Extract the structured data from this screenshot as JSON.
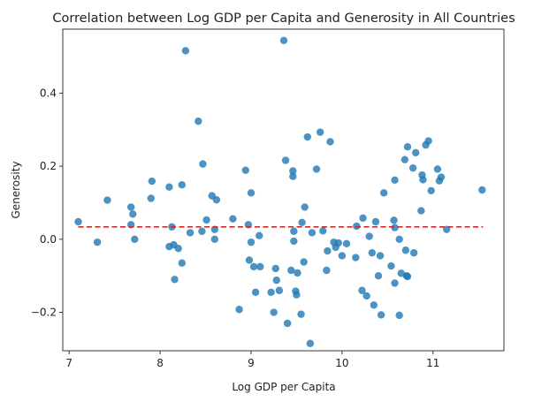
{
  "chart_data": {
    "type": "scatter",
    "title": "Correlation between Log GDP per Capita and Generosity in All Countries",
    "xlabel": "Log GDP per Capita",
    "ylabel": "Generosity",
    "xlim": [
      6.93,
      11.78
    ],
    "ylim": [
      -0.305,
      0.575
    ],
    "xticks": [
      7,
      8,
      9,
      10,
      11
    ],
    "yticks": [
      -0.2,
      0.0,
      0.2,
      0.4
    ],
    "ytick_labels": [
      "−0.2",
      "0.0",
      "0.2",
      "0.4"
    ],
    "grid": false,
    "colors": {
      "points": "#1f77b4",
      "trend": "#d62728"
    },
    "trend_line": {
      "style": "dashed",
      "x": [
        7.1,
        11.55
      ],
      "y": [
        0.034,
        0.034
      ]
    },
    "points": [
      [
        7.1,
        0.048
      ],
      [
        7.31,
        -0.008
      ],
      [
        7.42,
        0.107
      ],
      [
        7.68,
        0.088
      ],
      [
        7.7,
        0.069
      ],
      [
        7.68,
        0.04
      ],
      [
        7.72,
        0.0
      ],
      [
        7.9,
        0.112
      ],
      [
        7.91,
        0.159
      ],
      [
        8.1,
        0.143
      ],
      [
        8.1,
        -0.02
      ],
      [
        8.13,
        0.034
      ],
      [
        8.15,
        -0.015
      ],
      [
        8.16,
        -0.11
      ],
      [
        8.2,
        -0.025
      ],
      [
        8.24,
        0.149
      ],
      [
        8.24,
        -0.065
      ],
      [
        8.28,
        0.516
      ],
      [
        8.33,
        0.018
      ],
      [
        8.42,
        0.323
      ],
      [
        8.46,
        0.022
      ],
      [
        8.47,
        0.206
      ],
      [
        8.51,
        0.053
      ],
      [
        8.57,
        0.119
      ],
      [
        8.6,
        0.027
      ],
      [
        8.6,
        0.0
      ],
      [
        8.62,
        0.108
      ],
      [
        8.8,
        0.056
      ],
      [
        8.87,
        -0.192
      ],
      [
        8.94,
        0.189
      ],
      [
        8.97,
        0.04
      ],
      [
        8.98,
        -0.057
      ],
      [
        9.0,
        0.127
      ],
      [
        9.0,
        -0.008
      ],
      [
        9.03,
        -0.075
      ],
      [
        9.05,
        -0.145
      ],
      [
        9.09,
        0.01
      ],
      [
        9.1,
        -0.075
      ],
      [
        9.22,
        -0.145
      ],
      [
        9.25,
        -0.2
      ],
      [
        9.27,
        -0.08
      ],
      [
        9.28,
        -0.112
      ],
      [
        9.31,
        -0.14
      ],
      [
        9.36,
        0.544
      ],
      [
        9.38,
        0.216
      ],
      [
        9.4,
        -0.23
      ],
      [
        9.44,
        -0.085
      ],
      [
        9.46,
        0.187
      ],
      [
        9.46,
        0.172
      ],
      [
        9.47,
        -0.005
      ],
      [
        9.47,
        0.022
      ],
      [
        9.49,
        -0.142
      ],
      [
        9.5,
        -0.152
      ],
      [
        9.51,
        -0.092
      ],
      [
        9.55,
        -0.205
      ],
      [
        9.56,
        0.046
      ],
      [
        9.58,
        -0.062
      ],
      [
        9.59,
        0.088
      ],
      [
        9.62,
        0.28
      ],
      [
        9.65,
        -0.285
      ],
      [
        9.67,
        0.018
      ],
      [
        9.72,
        0.192
      ],
      [
        9.76,
        0.293
      ],
      [
        9.79,
        0.023
      ],
      [
        9.83,
        -0.085
      ],
      [
        9.84,
        -0.032
      ],
      [
        9.87,
        0.267
      ],
      [
        9.91,
        -0.008
      ],
      [
        9.93,
        -0.022
      ],
      [
        9.96,
        -0.01
      ],
      [
        10.0,
        -0.045
      ],
      [
        10.05,
        -0.012
      ],
      [
        10.15,
        -0.05
      ],
      [
        10.16,
        0.036
      ],
      [
        10.22,
        -0.14
      ],
      [
        10.23,
        0.058
      ],
      [
        10.27,
        -0.155
      ],
      [
        10.3,
        0.008
      ],
      [
        10.33,
        -0.037
      ],
      [
        10.35,
        -0.18
      ],
      [
        10.37,
        0.048
      ],
      [
        10.4,
        -0.1
      ],
      [
        10.42,
        -0.045
      ],
      [
        10.43,
        -0.207
      ],
      [
        10.46,
        0.127
      ],
      [
        10.54,
        -0.073
      ],
      [
        10.57,
        0.052
      ],
      [
        10.58,
        0.032
      ],
      [
        10.58,
        -0.12
      ],
      [
        10.58,
        0.162
      ],
      [
        10.63,
        -0.0
      ],
      [
        10.63,
        -0.208
      ],
      [
        10.65,
        -0.093
      ],
      [
        10.69,
        0.218
      ],
      [
        10.7,
        -0.03
      ],
      [
        10.71,
        -0.1
      ],
      [
        10.72,
        -0.102
      ],
      [
        10.72,
        0.253
      ],
      [
        10.78,
        0.195
      ],
      [
        10.79,
        -0.037
      ],
      [
        10.81,
        0.237
      ],
      [
        10.87,
        0.078
      ],
      [
        10.88,
        0.176
      ],
      [
        10.89,
        0.163
      ],
      [
        10.92,
        0.258
      ],
      [
        10.95,
        0.269
      ],
      [
        10.98,
        0.133
      ],
      [
        11.05,
        0.192
      ],
      [
        11.07,
        0.16
      ],
      [
        11.09,
        0.17
      ],
      [
        11.15,
        0.027
      ],
      [
        11.54,
        0.135
      ]
    ]
  }
}
